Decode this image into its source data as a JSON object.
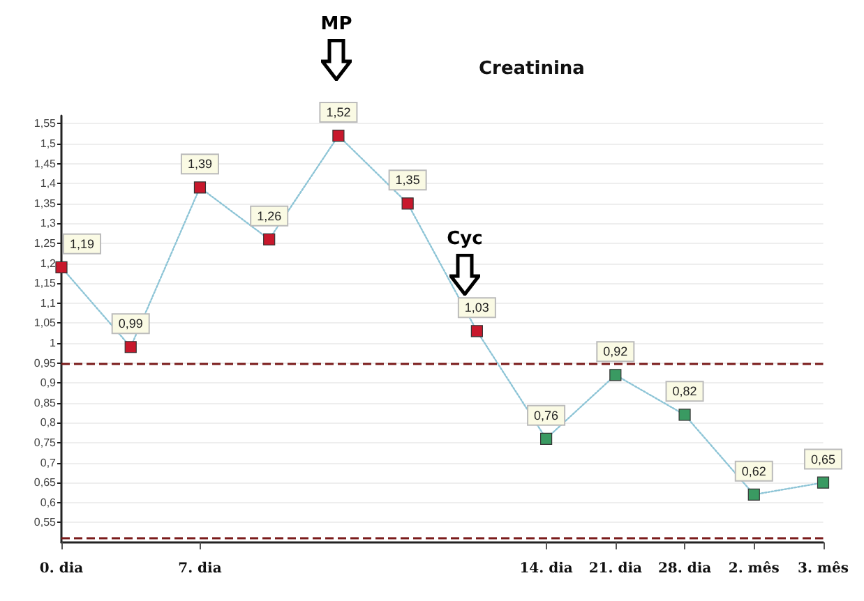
{
  "chart_data": {
    "type": "line",
    "title": "Creatinina",
    "categories": [
      "0. dia",
      null,
      "7. dia",
      null,
      null,
      null,
      null,
      "14. dia",
      "21. dia",
      "28. dia",
      "2. mês",
      "3. mês"
    ],
    "series": [
      {
        "color": "#8cc4d6",
        "colors": [
          "#c8182c",
          "#c8182c",
          "#c8182c",
          "#c8182c",
          "#c8182c",
          "#c8182c",
          "#c8182c",
          "#3a9a62",
          "#3a9a62",
          "#3a9a62",
          "#3a9a62",
          "#3a9a62"
        ],
        "values": [
          1.19,
          0.99,
          1.39,
          1.26,
          1.52,
          1.35,
          1.03,
          0.76,
          0.92,
          0.82,
          0.62,
          0.65
        ],
        "value_labels": [
          "1,19",
          "0,99",
          "1,39",
          "1,26",
          "1,52",
          "1,35",
          "1,03",
          "0,76",
          "0,92",
          "0,82",
          "0,62",
          "0,65"
        ]
      }
    ],
    "ylim": [
      0.5,
      1.57
    ],
    "yticks": [
      {
        "value": 0.55,
        "label": "0,55"
      },
      {
        "value": 0.6,
        "label": "0,6"
      },
      {
        "value": 0.65,
        "label": "0,65"
      },
      {
        "value": 0.7,
        "label": "0,7"
      },
      {
        "value": 0.75,
        "label": "0,75"
      },
      {
        "value": 0.8,
        "label": "0,8"
      },
      {
        "value": 0.85,
        "label": "0,85"
      },
      {
        "value": 0.9,
        "label": "0,9"
      },
      {
        "value": 0.95,
        "label": "0,95"
      },
      {
        "value": 1,
        "label": "1"
      },
      {
        "value": 1.05,
        "label": "1,05"
      },
      {
        "value": 1.1,
        "label": "1,1"
      },
      {
        "value": 1.15,
        "label": "1,15"
      },
      {
        "value": 1.2,
        "label": "1,2"
      },
      {
        "value": 1.25,
        "label": "1,25"
      },
      {
        "value": 1.3,
        "label": "1,3"
      },
      {
        "value": 1.35,
        "label": "1,35"
      },
      {
        "value": 1.4,
        "label": "1,4"
      },
      {
        "value": 1.45,
        "label": "1,45"
      },
      {
        "value": 1.5,
        "label": "1,5"
      },
      {
        "value": 1.55,
        "label": "1,55"
      }
    ],
    "ref_lines": [
      {
        "axis": "y",
        "value": 0.95,
        "color": "#7a1a1a",
        "line_style": "dashed"
      },
      {
        "axis": "y",
        "value": 0.51,
        "color": "#7a1a1a",
        "line_style": "dashed"
      }
    ],
    "annotations": [
      "MP",
      "Cyc"
    ],
    "grid": "y",
    "marker": "square",
    "line_style": "dotted"
  }
}
